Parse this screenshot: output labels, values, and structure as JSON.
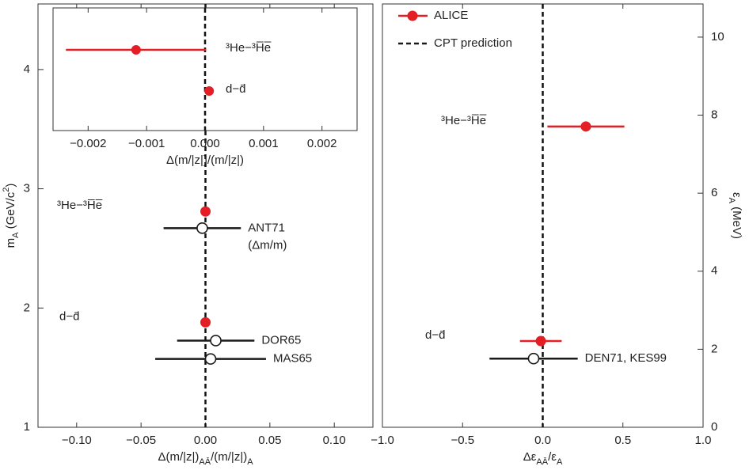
{
  "chart_data": [
    {
      "type": "scatter",
      "xlim": [
        -0.13,
        0.13
      ],
      "xticks": [
        {
          "value": -0.1,
          "label": "−0.10"
        },
        {
          "value": -0.05,
          "label": "−0.05"
        },
        {
          "value": 0,
          "label": "0.00"
        },
        0.05,
        {
          "value": 0.1,
          "label": "0.10"
        }
      ],
      "ylim": [
        1,
        4.55
      ],
      "yticks": [
        1,
        2,
        3,
        4
      ],
      "x_label": [
        {
          "text": "Δ(m/|z|)"
        },
        {
          "text": "AĀ",
          "sub": true
        },
        {
          "text": "/(m/|z|)"
        },
        {
          "text": "A",
          "sub": true
        }
      ],
      "y_label": [
        {
          "text": "m"
        },
        {
          "text": "A",
          "sub": true
        },
        {
          "text": " (GeV/c"
        },
        {
          "text": "2",
          "sup": true
        },
        {
          "text": ")"
        }
      ],
      "reference_x": 0,
      "groups": [
        {
          "label": "³He−³H̅e̅",
          "points": [
            {
              "x": 0,
              "y": 2.81,
              "xerr": 0.0012,
              "filled": true,
              "color": "#e31e24"
            },
            {
              "label": "ANT71",
              "note": "(Δm/m)",
              "x": -0.0025,
              "y": 2.67,
              "xerr": 0.03,
              "filled": false,
              "color": "#1a1a1a"
            }
          ]
        },
        {
          "label": "d−d̄",
          "points": [
            {
              "x": 0,
              "y": 1.88,
              "xerr": 7e-05,
              "filled": true,
              "color": "#e31e24"
            },
            {
              "label": "DOR65",
              "x": 0.008,
              "y": 1.727,
              "xerr": 0.03,
              "filled": false,
              "color": "#1a1a1a"
            },
            {
              "label": "MAS65",
              "x": 0.004,
              "y": 1.573,
              "xerr": 0.043,
              "filled": false,
              "color": "#1a1a1a"
            }
          ]
        }
      ]
    },
    {
      "type": "dot",
      "xlim": [
        -0.0026,
        0.0026
      ],
      "xticks": [
        {
          "value": -0.002,
          "label": "−0.002"
        },
        {
          "value": -0.001,
          "label": "−0.001"
        },
        {
          "value": 0,
          "label": "0.000"
        },
        0.001,
        0.002
      ],
      "x_label": [
        {
          "text": "Δ(m/|z|)/(m/|z|)"
        }
      ],
      "reference_x": 0,
      "categories": [
        "³He−³H̅e̅",
        "d−d̄"
      ],
      "values": [
        -0.00118,
        7e-05
      ],
      "errors": [
        0.0012,
        7e-05
      ],
      "color": "#e31e24"
    },
    {
      "type": "scatter",
      "xlim": [
        -1,
        1
      ],
      "xticks": [
        {
          "value": -1,
          "label": "−1.0"
        },
        {
          "value": -0.5,
          "label": "−0.5"
        },
        {
          "value": 0,
          "label": "0.0"
        },
        0.5,
        {
          "value": 1,
          "label": "1.0"
        }
      ],
      "ylim": [
        0,
        10.85
      ],
      "yticks": [
        0,
        2,
        4,
        6,
        8,
        10
      ],
      "y_side": "right",
      "x_label": [
        {
          "text": "Δε"
        },
        {
          "text": "AĀ",
          "sub": true
        },
        {
          "text": "/ε"
        },
        {
          "text": "A",
          "sub": true
        }
      ],
      "y_label": [
        {
          "text": "ε"
        },
        {
          "text": "A",
          "sub": true
        },
        {
          "text": " (MeV)"
        }
      ],
      "reference_x": 0,
      "legend": [
        {
          "name": "ALICE",
          "color": "#e31e24"
        },
        {
          "name": "CPT prediction",
          "color": "#1a1a1a"
        }
      ],
      "groups": [
        {
          "label": "³He−³H̅e̅",
          "points": [
            {
              "x": 0.269,
              "y": 7.71,
              "xerr": 0.24,
              "filled": true,
              "color": "#e31e24"
            }
          ]
        },
        {
          "label": "d−d̄",
          "points": [
            {
              "x": -0.012,
              "y": 2.21,
              "xerr": 0.13,
              "filled": true,
              "color": "#e31e24"
            },
            {
              "label": "DEN71, KES99",
              "x": -0.057,
              "y": 1.76,
              "xerr": 0.275,
              "filled": false,
              "color": "#1a1a1a"
            }
          ]
        }
      ]
    }
  ]
}
